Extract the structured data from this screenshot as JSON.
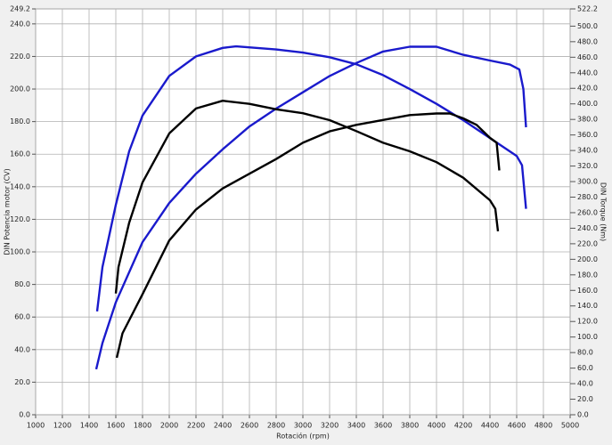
{
  "chart_data": {
    "type": "line",
    "x_label": "Rotación (rpm)",
    "y_label": "DIN Potencia motor (CV)",
    "y2_label": "DIN Torque (Nm)",
    "grid": true,
    "xlim": [
      1000,
      5000
    ],
    "xticks": [
      1000,
      1200,
      1400,
      1600,
      1800,
      2000,
      2200,
      2400,
      2600,
      2800,
      3000,
      3200,
      3400,
      3600,
      3800,
      4000,
      4200,
      4400,
      4600,
      4800,
      5000
    ],
    "ylim": [
      0,
      249.2
    ],
    "yticks": [
      {
        "value": 0,
        "label": "0.0"
      },
      {
        "value": 20,
        "label": "20.0"
      },
      {
        "value": 40,
        "label": "40.0"
      },
      {
        "value": 60,
        "label": "60.0"
      },
      {
        "value": 80,
        "label": "80.0"
      },
      {
        "value": 100,
        "label": "100.0"
      },
      {
        "value": 120,
        "label": "120.0"
      },
      {
        "value": 140,
        "label": "140.0"
      },
      {
        "value": 160,
        "label": "160.0"
      },
      {
        "value": 180,
        "label": "180.0"
      },
      {
        "value": 200,
        "label": "200.0"
      },
      {
        "value": 220,
        "label": "220.0"
      },
      {
        "value": 240,
        "label": "240.0"
      },
      249.2
    ],
    "y2lim": [
      0,
      522.2
    ],
    "y2ticks": [
      {
        "value": 0,
        "label": "0.0"
      },
      {
        "value": 20,
        "label": "20.0"
      },
      {
        "value": 40,
        "label": "40.0"
      },
      {
        "value": 60,
        "label": "60.0"
      },
      {
        "value": 80,
        "label": "80.0"
      },
      {
        "value": 100,
        "label": "100.0"
      },
      {
        "value": 120,
        "label": "120.0"
      },
      {
        "value": 140,
        "label": "140.0"
      },
      {
        "value": 160,
        "label": "160.0"
      },
      {
        "value": 180,
        "label": "180.0"
      },
      {
        "value": 200,
        "label": "200.0"
      },
      {
        "value": 220,
        "label": "220.0"
      },
      {
        "value": 240,
        "label": "240.0"
      },
      {
        "value": 260,
        "label": "260.0"
      },
      {
        "value": 280,
        "label": "280.0"
      },
      {
        "value": 300,
        "label": "300.0"
      },
      {
        "value": 320,
        "label": "320.0"
      },
      {
        "value": 340,
        "label": "340.0"
      },
      {
        "value": 360,
        "label": "360.0"
      },
      {
        "value": 380,
        "label": "380.0"
      },
      {
        "value": 400,
        "label": "400.0"
      },
      {
        "value": 420,
        "label": "420.0"
      },
      {
        "value": 440,
        "label": "440.0"
      },
      {
        "value": 460,
        "label": "460.0"
      },
      {
        "value": 480,
        "label": "480.0"
      },
      {
        "value": 500,
        "label": "500.0"
      },
      522.2
    ],
    "series": [
      {
        "color": "#1a1acc",
        "axis": "y2",
        "x": [
          1460,
          1500,
          1600,
          1700,
          1800,
          2000,
          2200,
          2400,
          2500,
          2800,
          3000,
          3200,
          3400,
          3600,
          3800,
          4000,
          4200,
          4400,
          4600,
          4640,
          4670
        ],
        "values": [
          133,
          190,
          270,
          339,
          385,
          436,
          461,
          472,
          474,
          470,
          466,
          460,
          451,
          437,
          419,
          400,
          379,
          356,
          333,
          321,
          265
        ]
      },
      {
        "color": "#1a1acc",
        "x": [
          1453,
          1500,
          1600,
          1800,
          2000,
          2200,
          2400,
          2600,
          2800,
          3000,
          3200,
          3400,
          3600,
          3800,
          4000,
          4200,
          4400,
          4550,
          4620,
          4650,
          4670
        ],
        "values": [
          27.9,
          44,
          69,
          106,
          130,
          148,
          163,
          177,
          188,
          198,
          208,
          216,
          223,
          226,
          226,
          221,
          217.5,
          215,
          212,
          200,
          176.5
        ]
      },
      {
        "color": "#000000",
        "axis": "y2",
        "x": [
          1600,
          1620,
          1700,
          1800,
          2000,
          2200,
          2400,
          2600,
          2800,
          3000,
          3200,
          3400,
          3600,
          3800,
          4000,
          4200,
          4400,
          4440,
          4460
        ],
        "values": [
          156,
          190,
          247,
          299,
          362,
          394,
          404,
          400,
          393,
          388,
          379,
          365,
          350,
          339,
          325,
          305,
          276,
          265,
          236
        ]
      },
      {
        "color": "#000000",
        "x": [
          1607,
          1650,
          1800,
          2000,
          2200,
          2400,
          2600,
          2800,
          3000,
          3200,
          3400,
          3600,
          3800,
          4000,
          4100,
          4200,
          4300,
          4400,
          4450,
          4470
        ],
        "values": [
          35,
          50,
          74,
          107,
          126,
          139,
          148,
          157,
          167,
          174,
          178,
          181,
          184,
          185,
          185,
          182,
          178,
          170,
          167,
          150
        ]
      }
    ]
  }
}
